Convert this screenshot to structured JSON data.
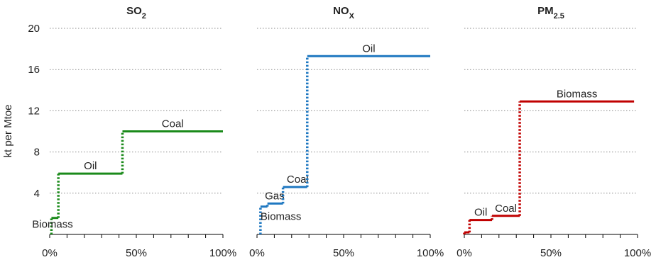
{
  "figure": {
    "ylabel": "kt per Mtoe"
  },
  "chart_data": [
    {
      "type": "line",
      "title_main": "SO",
      "title_sub": "2",
      "y_ticks": [
        "20",
        "16",
        "12",
        "8",
        "4"
      ],
      "y_tick_values": [
        20,
        16,
        12,
        8,
        4
      ],
      "x_ticks": [
        "0%",
        "50%",
        "100%"
      ],
      "x_tick_values": [
        0,
        50,
        100
      ],
      "ylim": [
        0,
        21.2
      ],
      "xlim": [
        0,
        100
      ],
      "grid": true,
      "color": "#1a8a1a",
      "steps": [
        {
          "name": "Biomass",
          "x0": 1,
          "x1": 5,
          "y": 1.6
        },
        {
          "name": "Oil",
          "x0": 5,
          "x1": 42,
          "y": 5.9
        },
        {
          "name": "Coal",
          "x0": 42,
          "x1": 100,
          "y": 10.0
        }
      ]
    },
    {
      "type": "line",
      "title_main": "NO",
      "title_sub": "X",
      "y_ticks": [
        "20",
        "16",
        "12",
        "8",
        "4"
      ],
      "y_tick_values": [
        20,
        16,
        12,
        8,
        4
      ],
      "x_ticks": [
        "0%",
        "50%",
        "100%"
      ],
      "x_tick_values": [
        0,
        50,
        100
      ],
      "ylim": [
        0,
        21.2
      ],
      "xlim": [
        0,
        100
      ],
      "grid": true,
      "color": "#1f78c1",
      "steps": [
        {
          "name": "Biomass",
          "x0": 2,
          "x1": 6,
          "y": 2.7
        },
        {
          "name": "Gas",
          "x0": 6,
          "x1": 15,
          "y": 3.0
        },
        {
          "name": "Coal",
          "x0": 15,
          "x1": 29,
          "y": 4.6
        },
        {
          "name": "Oil",
          "x0": 29,
          "x1": 100,
          "y": 17.3
        }
      ]
    },
    {
      "type": "line",
      "title_main": "PM",
      "title_sub": "2.5",
      "y_ticks": [
        "20",
        "16",
        "12",
        "8",
        "4"
      ],
      "y_tick_values": [
        20,
        16,
        12,
        8,
        4
      ],
      "x_ticks": [
        "0%",
        "50%",
        "100%"
      ],
      "x_tick_values": [
        0,
        50,
        100
      ],
      "ylim": [
        0,
        21.2
      ],
      "xlim": [
        0,
        100
      ],
      "grid": true,
      "color": "#c00000",
      "steps": [
        {
          "name": "",
          "x0": 0,
          "x1": 3,
          "y": 0.2
        },
        {
          "name": "Oil",
          "x0": 3,
          "x1": 16,
          "y": 1.4
        },
        {
          "name": "Coal",
          "x0": 16,
          "x1": 32,
          "y": 1.8
        },
        {
          "name": "Biomass",
          "x0": 32,
          "x1": 98,
          "y": 12.9
        }
      ]
    }
  ]
}
